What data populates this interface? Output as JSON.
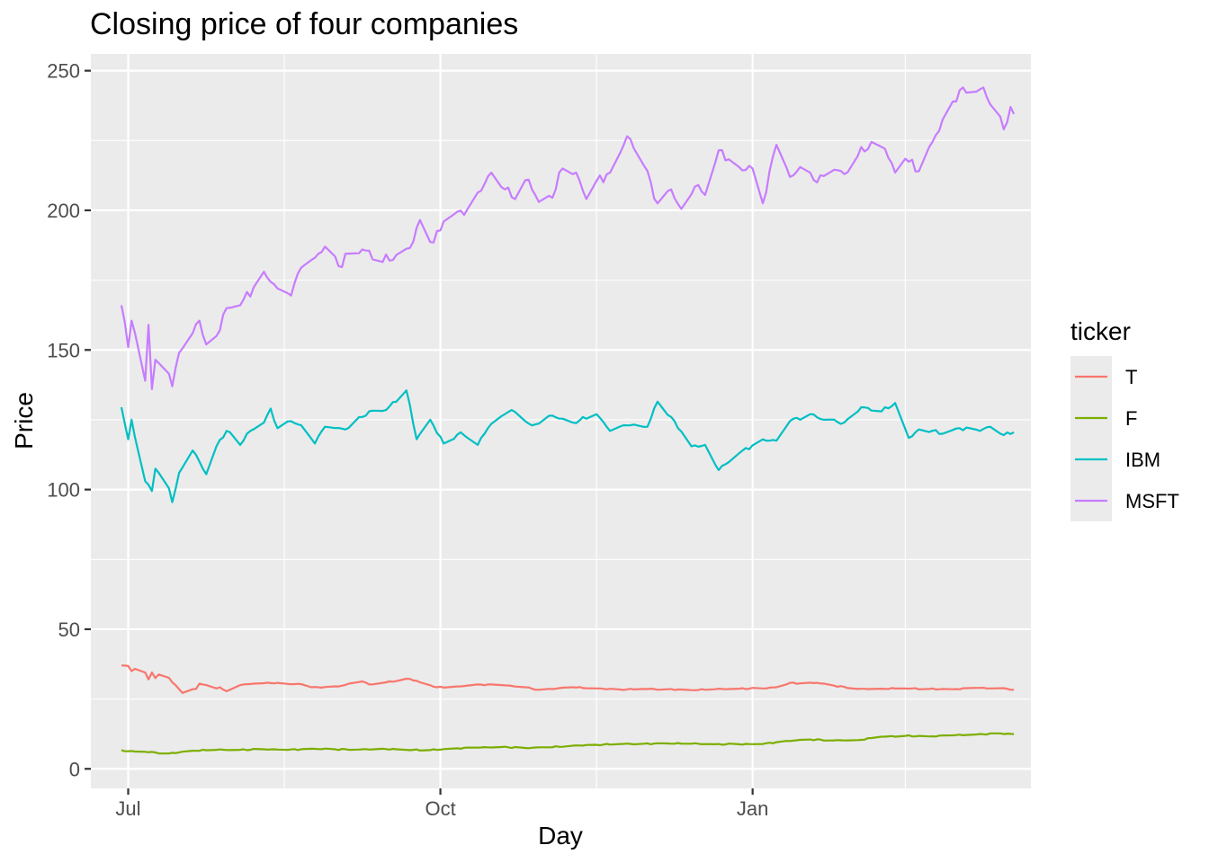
{
  "chart_data": {
    "type": "line",
    "title": "Closing price of four companies",
    "xlabel": "Day",
    "ylabel": "Price",
    "ylim": [
      -7,
      256
    ],
    "y_ticks": [
      0,
      50,
      100,
      150,
      200,
      250
    ],
    "x_ticks": [
      {
        "label": "Jul",
        "date": "2020-07-01"
      },
      {
        "label": "Oct",
        "date": "2020-10-01"
      },
      {
        "label": "Jan",
        "date": "2021-01-01"
      }
    ],
    "x_minor_breaks": [
      "2020-08-16",
      "2020-11-16",
      "2021-02-15"
    ],
    "xlim": [
      "2020-06-20",
      "2021-03-24"
    ],
    "x_start": "2020-06-29",
    "x_end": "2021-03-19",
    "grid": true,
    "legend": {
      "title": "ticker",
      "position": "right"
    },
    "series": [
      {
        "name": "T",
        "color": "#F8766D",
        "points": [
          [
            "2020-06-29",
            37.0
          ],
          [
            "2020-07-01",
            36.8
          ],
          [
            "2020-07-02",
            35.0
          ],
          [
            "2020-07-03",
            35.8
          ],
          [
            "2020-07-06",
            34.5
          ],
          [
            "2020-07-07",
            32.0
          ],
          [
            "2020-07-08",
            34.5
          ],
          [
            "2020-07-09",
            32.5
          ],
          [
            "2020-07-10",
            33.8
          ],
          [
            "2020-07-13",
            32.6
          ],
          [
            "2020-07-14",
            31.0
          ],
          [
            "2020-07-16",
            28.5
          ],
          [
            "2020-07-17",
            27.2
          ],
          [
            "2020-07-20",
            28.5
          ],
          [
            "2020-07-21",
            28.6
          ],
          [
            "2020-07-22",
            30.5
          ],
          [
            "2020-07-24",
            30.0
          ],
          [
            "2020-07-27",
            28.8
          ],
          [
            "2020-07-28",
            29.2
          ],
          [
            "2020-07-30",
            27.8
          ],
          [
            "2020-08-03",
            30.0
          ],
          [
            "2020-08-07",
            30.5
          ],
          [
            "2020-08-12",
            30.7
          ],
          [
            "2020-08-17",
            30.4
          ],
          [
            "2020-08-21",
            30.3
          ],
          [
            "2020-08-24",
            29.2
          ],
          [
            "2020-08-26",
            29.2
          ],
          [
            "2020-09-01",
            29.5
          ],
          [
            "2020-09-04",
            30.5
          ],
          [
            "2020-09-08",
            31.3
          ],
          [
            "2020-09-10",
            30.2
          ],
          [
            "2020-09-15",
            31.0
          ],
          [
            "2020-09-22",
            32.2
          ],
          [
            "2020-09-25",
            31.0
          ],
          [
            "2020-09-30",
            29.2
          ],
          [
            "2020-10-06",
            29.5
          ],
          [
            "2020-10-12",
            30.2
          ],
          [
            "2020-10-19",
            30.0
          ],
          [
            "2020-10-26",
            29.2
          ],
          [
            "2020-10-30",
            28.3
          ],
          [
            "2020-11-09",
            29.2
          ],
          [
            "2020-11-16",
            28.8
          ],
          [
            "2020-11-23",
            28.4
          ],
          [
            "2020-11-30",
            28.6
          ],
          [
            "2020-12-07",
            28.5
          ],
          [
            "2020-12-14",
            28.2
          ],
          [
            "2020-12-21",
            28.5
          ],
          [
            "2020-12-28",
            28.7
          ],
          [
            "2021-01-04",
            28.8
          ],
          [
            "2021-01-08",
            29.2
          ],
          [
            "2021-01-12",
            30.8
          ],
          [
            "2021-01-15",
            30.6
          ],
          [
            "2021-01-20",
            30.8
          ],
          [
            "2021-01-25",
            29.8
          ],
          [
            "2021-02-01",
            28.6
          ],
          [
            "2021-02-08",
            28.7
          ],
          [
            "2021-02-15",
            28.8
          ],
          [
            "2021-02-22",
            28.6
          ],
          [
            "2021-03-01",
            28.5
          ],
          [
            "2021-03-08",
            29.0
          ],
          [
            "2021-03-12",
            28.8
          ],
          [
            "2021-03-16",
            28.9
          ],
          [
            "2021-03-19",
            28.3
          ]
        ]
      },
      {
        "name": "F",
        "color": "#7CAE00",
        "points": [
          [
            "2020-06-29",
            6.7
          ],
          [
            "2020-07-01",
            6.3
          ],
          [
            "2020-07-06",
            6.1
          ],
          [
            "2020-07-13",
            5.5
          ],
          [
            "2020-07-20",
            6.5
          ],
          [
            "2020-07-27",
            6.8
          ],
          [
            "2020-08-03",
            6.8
          ],
          [
            "2020-08-10",
            7.0
          ],
          [
            "2020-08-17",
            6.8
          ],
          [
            "2020-08-24",
            7.2
          ],
          [
            "2020-08-31",
            7.0
          ],
          [
            "2020-09-07",
            6.9
          ],
          [
            "2020-09-14",
            7.2
          ],
          [
            "2020-09-21",
            6.8
          ],
          [
            "2020-09-28",
            6.7
          ],
          [
            "2020-10-05",
            7.3
          ],
          [
            "2020-10-12",
            7.6
          ],
          [
            "2020-10-19",
            7.8
          ],
          [
            "2020-10-26",
            7.5
          ],
          [
            "2020-11-02",
            7.7
          ],
          [
            "2020-11-09",
            8.3
          ],
          [
            "2020-11-16",
            8.6
          ],
          [
            "2020-11-23",
            8.9
          ],
          [
            "2020-11-30",
            9.0
          ],
          [
            "2020-12-07",
            9.1
          ],
          [
            "2020-12-14",
            9.0
          ],
          [
            "2020-12-21",
            8.8
          ],
          [
            "2020-12-28",
            8.8
          ],
          [
            "2021-01-04",
            8.9
          ],
          [
            "2021-01-11",
            10.0
          ],
          [
            "2021-01-18",
            10.5
          ],
          [
            "2021-01-25",
            10.2
          ],
          [
            "2021-02-01",
            10.3
          ],
          [
            "2021-02-08",
            11.5
          ],
          [
            "2021-02-15",
            11.8
          ],
          [
            "2021-02-22",
            11.6
          ],
          [
            "2021-03-01",
            12.0
          ],
          [
            "2021-03-08",
            12.3
          ],
          [
            "2021-03-15",
            12.7
          ],
          [
            "2021-03-19",
            12.4
          ]
        ]
      },
      {
        "name": "IBM",
        "color": "#00BFC4",
        "points": [
          [
            "2020-06-29",
            129.5
          ],
          [
            "2020-07-01",
            118.0
          ],
          [
            "2020-07-02",
            125.0
          ],
          [
            "2020-07-06",
            103.0
          ],
          [
            "2020-07-08",
            99.5
          ],
          [
            "2020-07-09",
            107.5
          ],
          [
            "2020-07-13",
            100.5
          ],
          [
            "2020-07-14",
            95.5
          ],
          [
            "2020-07-16",
            106.0
          ],
          [
            "2020-07-20",
            114.0
          ],
          [
            "2020-07-22",
            110.0
          ],
          [
            "2020-07-24",
            105.5
          ],
          [
            "2020-07-27",
            115.5
          ],
          [
            "2020-07-30",
            121.0
          ],
          [
            "2020-08-03",
            116.0
          ],
          [
            "2020-08-05",
            120.0
          ],
          [
            "2020-08-10",
            124.0
          ],
          [
            "2020-08-12",
            129.0
          ],
          [
            "2020-08-14",
            122.0
          ],
          [
            "2020-08-18",
            124.5
          ],
          [
            "2020-08-21",
            123.0
          ],
          [
            "2020-08-25",
            116.5
          ],
          [
            "2020-08-28",
            122.5
          ],
          [
            "2020-09-03",
            121.5
          ],
          [
            "2020-09-10",
            128.0
          ],
          [
            "2020-09-15",
            128.5
          ],
          [
            "2020-09-21",
            135.5
          ],
          [
            "2020-09-24",
            118.0
          ],
          [
            "2020-09-28",
            125.0
          ],
          [
            "2020-10-02",
            116.5
          ],
          [
            "2020-10-07",
            120.5
          ],
          [
            "2020-10-12",
            116.0
          ],
          [
            "2020-10-15",
            122.0
          ],
          [
            "2020-10-20",
            127.0
          ],
          [
            "2020-10-22",
            128.5
          ],
          [
            "2020-10-28",
            123.0
          ],
          [
            "2020-11-03",
            126.5
          ],
          [
            "2020-11-09",
            124.0
          ],
          [
            "2020-11-16",
            127.0
          ],
          [
            "2020-11-20",
            121.0
          ],
          [
            "2020-11-25",
            123.0
          ],
          [
            "2020-12-01",
            122.5
          ],
          [
            "2020-12-04",
            131.5
          ],
          [
            "2020-12-08",
            126.0
          ],
          [
            "2020-12-14",
            115.5
          ],
          [
            "2020-12-18",
            116.0
          ],
          [
            "2020-12-22",
            107.0
          ],
          [
            "2020-12-28",
            113.0
          ],
          [
            "2021-01-04",
            118.0
          ],
          [
            "2021-01-08",
            117.5
          ],
          [
            "2021-01-12",
            124.5
          ],
          [
            "2021-01-18",
            127.0
          ],
          [
            "2021-01-22",
            125.0
          ],
          [
            "2021-01-28",
            124.0
          ],
          [
            "2021-02-02",
            129.5
          ],
          [
            "2021-02-08",
            128.0
          ],
          [
            "2021-02-12",
            131.0
          ],
          [
            "2021-02-16",
            118.5
          ],
          [
            "2021-02-20",
            122.0
          ],
          [
            "2021-02-26",
            120.0
          ],
          [
            "2021-03-03",
            122.0
          ],
          [
            "2021-03-09",
            121.0
          ],
          [
            "2021-03-12",
            122.5
          ],
          [
            "2021-03-16",
            119.5
          ],
          [
            "2021-03-19",
            120.5
          ]
        ]
      },
      {
        "name": "MSFT",
        "color": "#C77CFF",
        "points": [
          [
            "2020-06-29",
            166.0
          ],
          [
            "2020-07-01",
            151.0
          ],
          [
            "2020-07-02",
            160.5
          ],
          [
            "2020-07-06",
            139.0
          ],
          [
            "2020-07-07",
            159.0
          ],
          [
            "2020-07-08",
            136.0
          ],
          [
            "2020-07-09",
            146.5
          ],
          [
            "2020-07-13",
            141.5
          ],
          [
            "2020-07-14",
            137.0
          ],
          [
            "2020-07-16",
            149.0
          ],
          [
            "2020-07-20",
            156.0
          ],
          [
            "2020-07-22",
            160.5
          ],
          [
            "2020-07-24",
            152.0
          ],
          [
            "2020-07-27",
            155.0
          ],
          [
            "2020-07-30",
            165.0
          ],
          [
            "2020-08-03",
            166.0
          ],
          [
            "2020-08-07",
            172.5
          ],
          [
            "2020-08-10",
            178.0
          ],
          [
            "2020-08-14",
            172.0
          ],
          [
            "2020-08-18",
            169.5
          ],
          [
            "2020-08-21",
            179.5
          ],
          [
            "2020-08-25",
            183.0
          ],
          [
            "2020-08-28",
            187.0
          ],
          [
            "2020-09-01",
            180.0
          ],
          [
            "2020-09-04",
            184.5
          ],
          [
            "2020-09-08",
            186.0
          ],
          [
            "2020-09-14",
            181.5
          ],
          [
            "2020-09-18",
            184.0
          ],
          [
            "2020-09-22",
            186.5
          ],
          [
            "2020-09-25",
            196.5
          ],
          [
            "2020-09-29",
            188.5
          ],
          [
            "2020-10-02",
            196.0
          ],
          [
            "2020-10-06",
            199.5
          ],
          [
            "2020-10-09",
            200.5
          ],
          [
            "2020-10-13",
            207.0
          ],
          [
            "2020-10-16",
            213.5
          ],
          [
            "2020-10-20",
            207.5
          ],
          [
            "2020-10-23",
            204.0
          ],
          [
            "2020-10-27",
            211.0
          ],
          [
            "2020-10-30",
            203.0
          ],
          [
            "2020-11-03",
            204.5
          ],
          [
            "2020-11-06",
            215.0
          ],
          [
            "2020-11-10",
            213.5
          ],
          [
            "2020-11-13",
            204.0
          ],
          [
            "2020-11-16",
            210.5
          ],
          [
            "2020-11-20",
            213.5
          ],
          [
            "2020-11-25",
            226.5
          ],
          [
            "2020-11-30",
            216.0
          ],
          [
            "2020-12-04",
            202.5
          ],
          [
            "2020-12-08",
            207.5
          ],
          [
            "2020-12-11",
            200.5
          ],
          [
            "2020-12-15",
            208.5
          ],
          [
            "2020-12-18",
            205.5
          ],
          [
            "2020-12-22",
            221.5
          ],
          [
            "2020-12-28",
            215.5
          ],
          [
            "2021-01-01",
            215.0
          ],
          [
            "2021-01-04",
            202.5
          ],
          [
            "2021-01-08",
            223.5
          ],
          [
            "2021-01-12",
            212.0
          ],
          [
            "2021-01-15",
            215.5
          ],
          [
            "2021-01-20",
            210.0
          ],
          [
            "2021-01-25",
            214.5
          ],
          [
            "2021-01-28",
            213.0
          ],
          [
            "2021-02-01",
            219.5
          ],
          [
            "2021-02-05",
            224.5
          ],
          [
            "2021-02-09",
            222.0
          ],
          [
            "2021-02-12",
            213.5
          ],
          [
            "2021-02-15",
            218.5
          ],
          [
            "2021-02-19",
            214.0
          ],
          [
            "2021-02-23",
            224.5
          ],
          [
            "2021-02-26",
            232.5
          ],
          [
            "2021-03-01",
            239.0
          ],
          [
            "2021-03-03",
            243.0
          ],
          [
            "2021-03-07",
            242.5
          ],
          [
            "2021-03-10",
            244.0
          ],
          [
            "2021-03-12",
            238.0
          ],
          [
            "2021-03-14",
            234.5
          ],
          [
            "2021-03-16",
            229.0
          ],
          [
            "2021-03-18",
            237.0
          ],
          [
            "2021-03-19",
            234.5
          ]
        ]
      }
    ]
  }
}
